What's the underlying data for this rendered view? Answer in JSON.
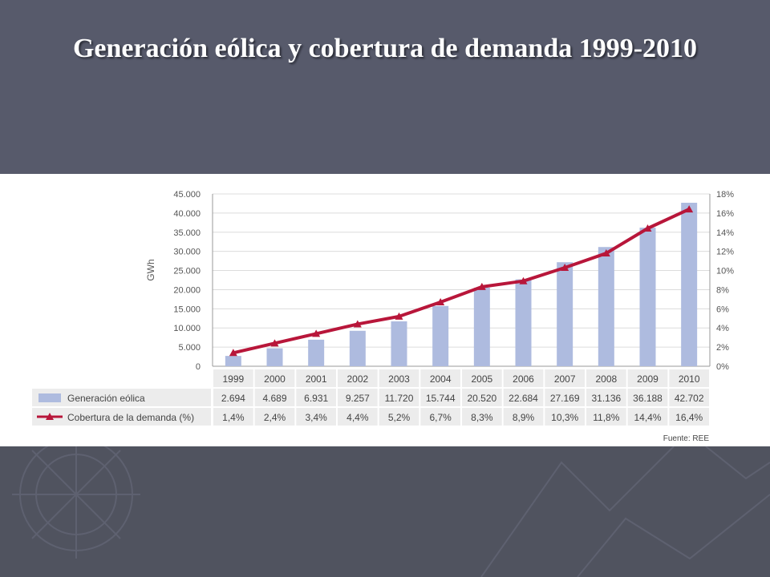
{
  "slide": {
    "title": "Generación eólica y cobertura de demanda 1999-2010"
  },
  "colors": {
    "background": "#575a6b",
    "bar": "#aebbdf",
    "line": "#b8163a",
    "grid": "#dcdcdc",
    "table_bg": "#ececec"
  },
  "source": "Fuente: REE",
  "chart_data": {
    "type": "bar",
    "title": "",
    "categories": [
      "1999",
      "2000",
      "2001",
      "2002",
      "2003",
      "2004",
      "2005",
      "2006",
      "2007",
      "2008",
      "2009",
      "2010"
    ],
    "ylabel": "GWh",
    "ylim": [
      0,
      45000
    ],
    "y_ticks": [
      "45.000",
      "40.000",
      "35.000",
      "30.000",
      "25.000",
      "20.000",
      "15.000",
      "10.000",
      "5.000",
      "0"
    ],
    "y2lim": [
      0,
      18
    ],
    "y2_ticks": [
      "18%",
      "16%",
      "14%",
      "12%",
      "10%",
      "8%",
      "6%",
      "4%",
      "2%",
      "0%"
    ],
    "grid": true,
    "series": [
      {
        "name": "Generación eólica",
        "type": "bar",
        "axis": "left",
        "values": [
          2694,
          4689,
          6931,
          9257,
          11720,
          15744,
          20520,
          22684,
          27169,
          31136,
          36188,
          42702
        ],
        "labels": [
          "2.694",
          "4.689",
          "6.931",
          "9.257",
          "11.720",
          "15.744",
          "20.520",
          "22.684",
          "27.169",
          "31.136",
          "36.188",
          "42.702"
        ]
      },
      {
        "name": "Cobertura de la demanda (%)",
        "type": "line",
        "axis": "right",
        "values": [
          1.4,
          2.4,
          3.4,
          4.4,
          5.2,
          6.7,
          8.3,
          8.9,
          10.3,
          11.8,
          14.4,
          16.4
        ],
        "labels": [
          "1,4%",
          "2,4%",
          "3,4%",
          "4,4%",
          "5,2%",
          "6,7%",
          "8,3%",
          "8,9%",
          "10,3%",
          "11,8%",
          "14,4%",
          "16,4%"
        ]
      }
    ]
  }
}
